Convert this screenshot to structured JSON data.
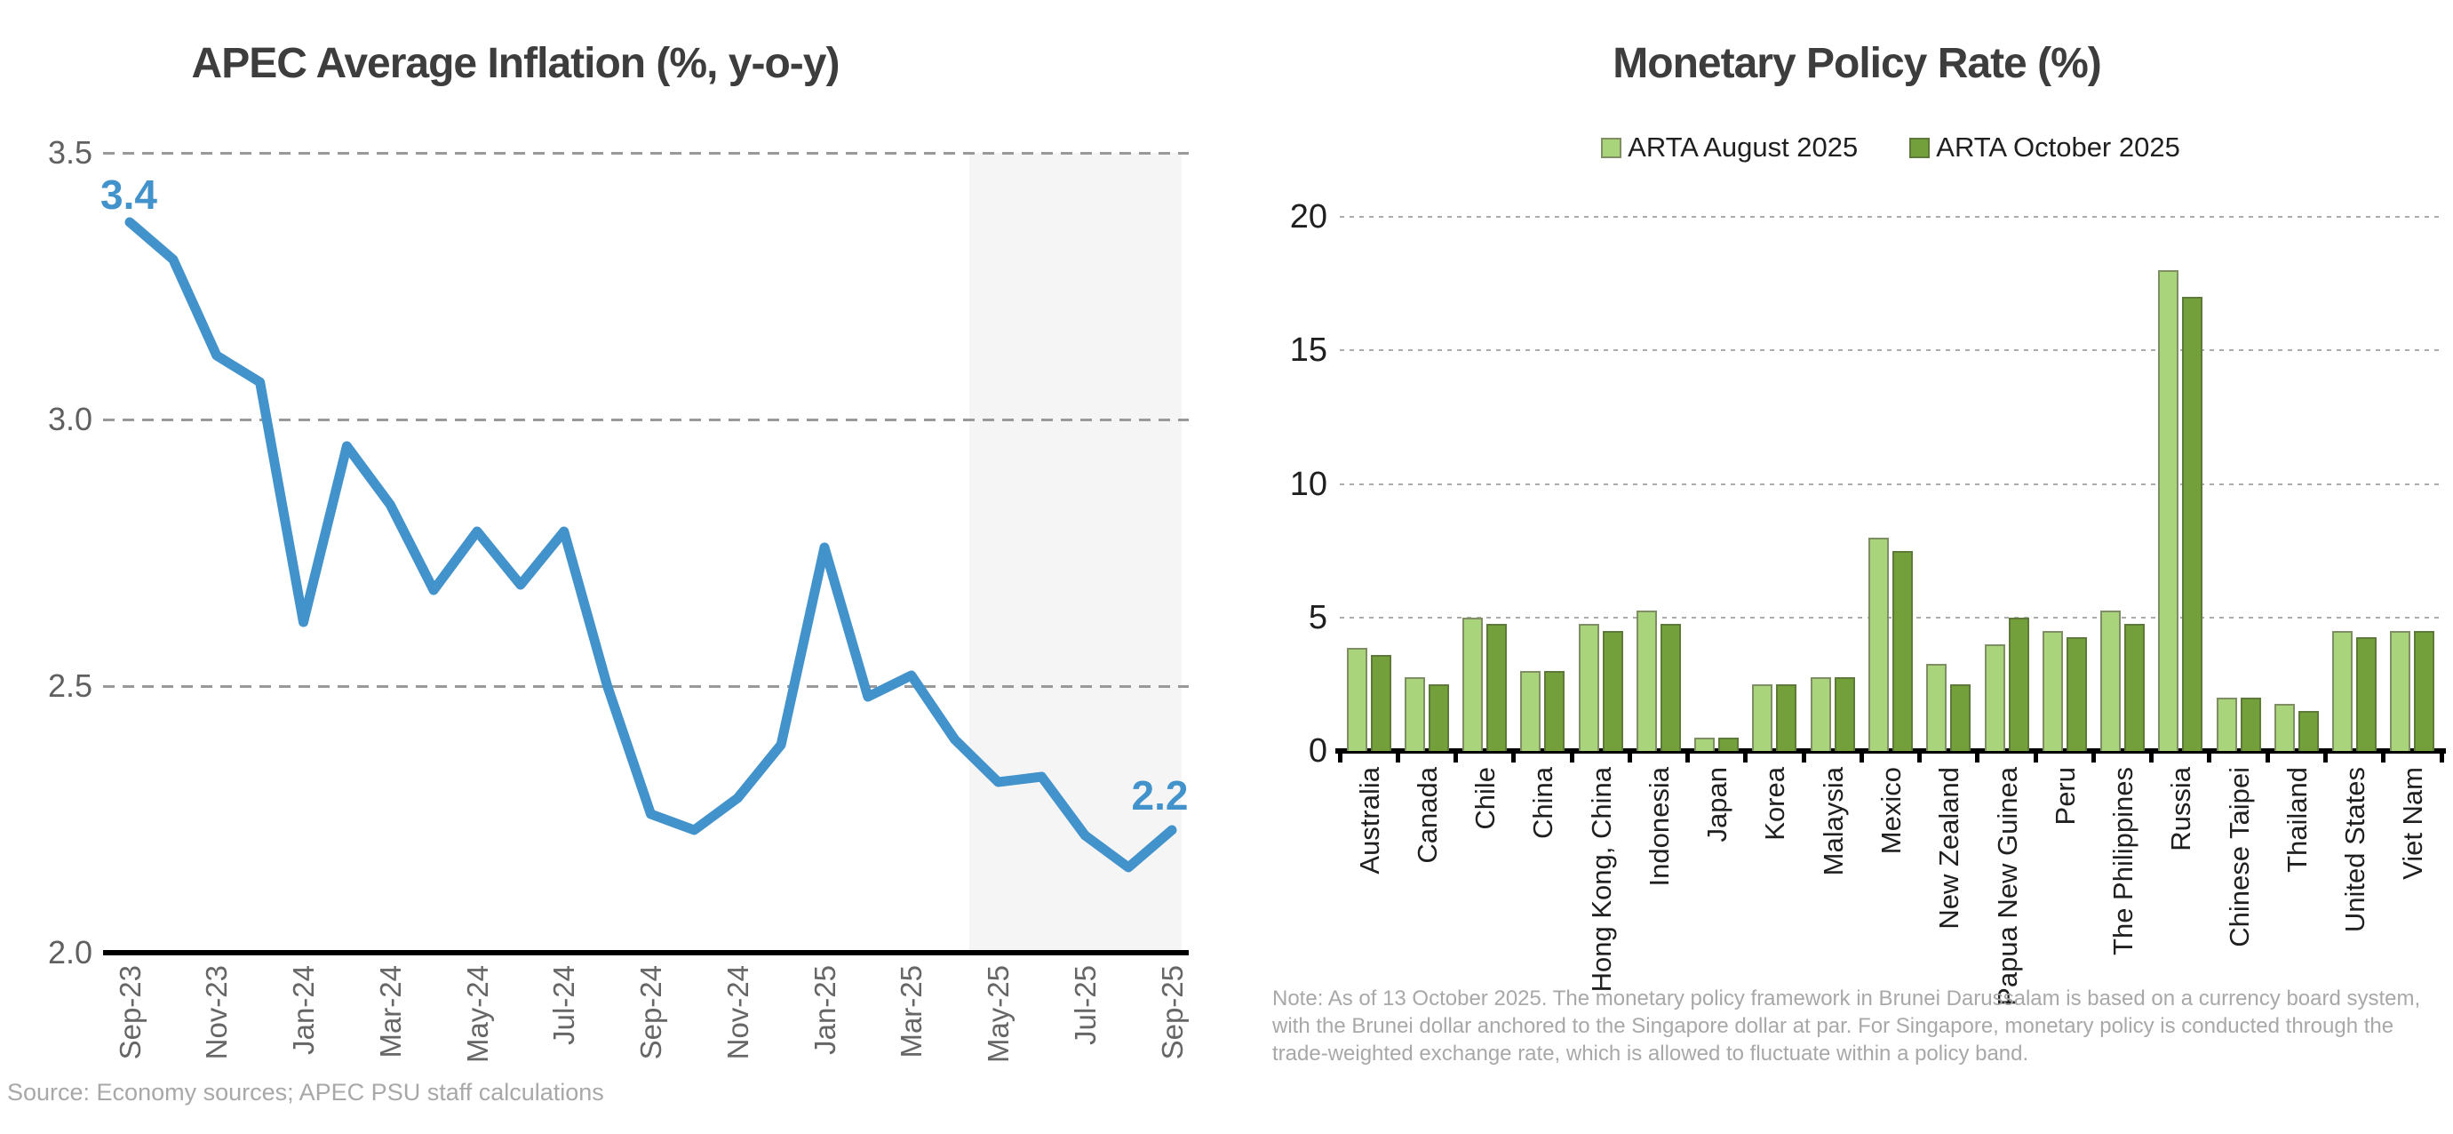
{
  "chart_data": [
    {
      "type": "line",
      "title": "APEC Average Inflation (%, y-o-y)",
      "x": [
        "Sep-23",
        "Oct-23",
        "Nov-23",
        "Dec-23",
        "Jan-24",
        "Feb-24",
        "Mar-24",
        "Apr-24",
        "May-24",
        "Jun-24",
        "Jul-24",
        "Aug-24",
        "Sep-24",
        "Oct-24",
        "Nov-24",
        "Dec-24",
        "Jan-25",
        "Feb-25",
        "Mar-25",
        "Apr-25",
        "May-25",
        "Jun-25",
        "Jul-25",
        "Aug-25",
        "Sep-25"
      ],
      "values": [
        3.37,
        3.3,
        3.12,
        3.07,
        2.62,
        2.95,
        2.84,
        2.68,
        2.79,
        2.69,
        2.79,
        2.5,
        2.26,
        2.23,
        2.29,
        2.39,
        2.76,
        2.48,
        2.52,
        2.4,
        2.32,
        2.33,
        2.22,
        2.16,
        2.23
      ],
      "x_tick_labels": [
        "Sep-23",
        "Nov-23",
        "Jan-24",
        "Mar-24",
        "May-24",
        "Jul-24",
        "Sep-24",
        "Nov-24",
        "Jan-25",
        "Mar-25",
        "May-25",
        "Jul-25",
        "Sep-25"
      ],
      "y_ticks": [
        "3.5",
        "3.0",
        "2.5",
        "2.0"
      ],
      "ylim": [
        2.0,
        3.5
      ],
      "grid": "horizontal-dashed",
      "line_color": "#4292cc",
      "first_point_label": "3.4",
      "last_point_label": "2.2",
      "forecast_band": {
        "from_x": "May-25",
        "to_x": "Sep-25",
        "color": "#f5f5f6"
      },
      "source": "Source: Economy sources; APEC PSU staff calculations"
    },
    {
      "type": "bar",
      "title": "Monetary Policy Rate (%)",
      "categories": [
        "Australia",
        "Canada",
        "Chile",
        "China",
        "Hong Kong, China",
        "Indonesia",
        "Japan",
        "Korea",
        "Malaysia",
        "Mexico",
        "New Zealand",
        "Papua New Guinea",
        "Peru",
        "The Philippines",
        "Russia",
        "Chinese Taipei",
        "Thailand",
        "United States",
        "Viet Nam"
      ],
      "series": [
        {
          "name": "ARTA August 2025",
          "color": "#a9d47b",
          "border_color": "#7f8e63",
          "values": [
            3.85,
            2.75,
            5.0,
            3.0,
            4.75,
            5.25,
            0.5,
            2.5,
            2.75,
            8.0,
            3.25,
            4.0,
            4.5,
            5.25,
            18.0,
            2.0,
            1.75,
            4.5,
            4.5
          ]
        },
        {
          "name": "ARTA October 2025",
          "color": "#74a03c",
          "border_color": "#5e7a38",
          "values": [
            3.6,
            2.5,
            4.75,
            3.0,
            4.5,
            4.75,
            0.5,
            2.5,
            2.75,
            7.5,
            2.5,
            5.0,
            4.25,
            4.75,
            17.0,
            2.0,
            1.5,
            4.25,
            4.5
          ]
        }
      ],
      "y_ticks": [
        "20",
        "15",
        "10",
        "5",
        "0"
      ],
      "ylim": [
        0,
        20
      ],
      "grid": "horizontal-dotted",
      "legend_position": "top center",
      "note": "Note: As of 13 October 2025. The monetary policy framework in Brunei Darussalam is based on a currency board system, with the Brunei dollar anchored to the Singapore dollar at par. For Singapore, monetary policy is conducted through the trade-weighted exchange rate, which is allowed to fluctuate within a policy band."
    }
  ]
}
